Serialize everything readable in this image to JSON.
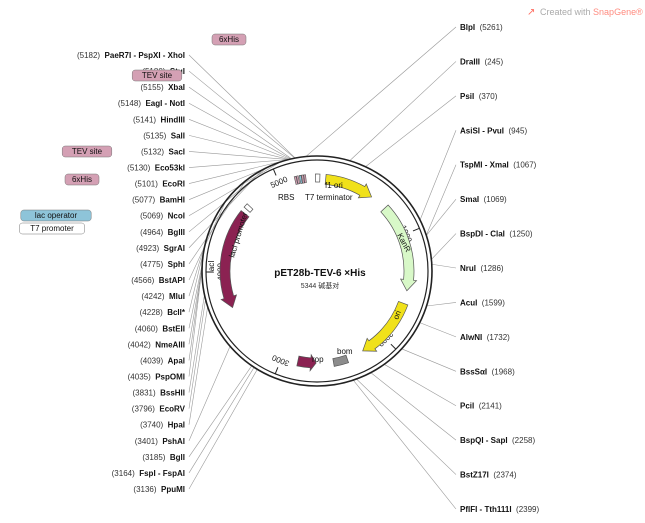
{
  "credit": {
    "prefix": "Created with",
    "brand": "SnapGene®",
    "brand_color": "#ff6e61"
  },
  "plasmid": {
    "name": "pET28b-TEV-6 ×His",
    "size": "5344",
    "size_suffix": "碱基对",
    "length_bp": 5344
  },
  "colors": {
    "backbone": "#222222",
    "f1_ori": "#f0e11a",
    "kanr": "#d8f8c8",
    "ori": "#f0e11a",
    "laci": "#8b2252",
    "rop": "#8b2252",
    "bom": "#8c8c8c",
    "tev_tag": "#d4a0b4",
    "his_tag": "#d4a0b4",
    "lac_operator": "#8ec4d9",
    "t7_promoter": "#ffffff",
    "rbs": "#ffffff"
  },
  "ticks": [
    {
      "bp": 1000,
      "label": "1000"
    },
    {
      "bp": 2000,
      "label": "2000"
    },
    {
      "bp": 3000,
      "label": "3000"
    },
    {
      "bp": 4000,
      "label": "4000"
    },
    {
      "bp": 5000,
      "label": "5000"
    }
  ],
  "features": [
    {
      "name": "f1 ori",
      "start": 80,
      "end": 540,
      "type": "arrow",
      "color": "#f0e11a",
      "label_inside": true
    },
    {
      "name": "KanR",
      "start": 700,
      "end": 1520,
      "type": "arrow",
      "color": "#d8f8c8",
      "label_inside": true
    },
    {
      "name": "ori",
      "start": 1640,
      "end": 2230,
      "type": "arrow",
      "color": "#f0e11a",
      "label_inside": true
    },
    {
      "name": "rop",
      "start": 2850,
      "end": 2680,
      "type": "arrow",
      "color": "#8b2252",
      "label_inside": false
    },
    {
      "name": "bom",
      "start": 2390,
      "end": 2520,
      "type": "box",
      "color": "#8c8c8c",
      "label_inside": false
    },
    {
      "name": "lacI",
      "start": 4580,
      "end": 3660,
      "type": "arrow",
      "color": "#8b2252",
      "label_inside": true
    },
    {
      "name": "lacI promoter",
      "start": 4660,
      "end": 4620,
      "type": "box",
      "color": "#ffffff",
      "label_inside": false
    },
    {
      "name": "RBS",
      "start": 5190,
      "end": 5210,
      "type": "box",
      "color": "#ffffff",
      "label_inside": false
    },
    {
      "name": "T7 terminator",
      "start": 5330,
      "end": 5370,
      "type": "box",
      "color": "#ffffff",
      "label_inside": false
    }
  ],
  "inner_labels": {
    "t7_terminator": "T7 terminator",
    "rbs": "RBS",
    "lacI_promoter": "lacI promoter",
    "bom": "bom",
    "rop": "rop"
  },
  "sites_right": [
    {
      "name": "BlpI",
      "pos": "(5261)",
      "bp": 5261
    },
    {
      "name": "DraIII",
      "pos": "(245)",
      "bp": 245
    },
    {
      "name": "PsiI",
      "pos": "(370)",
      "bp": 370
    },
    {
      "name": "AsiSI - PvuI",
      "pos": "(945)",
      "bp": 945
    },
    {
      "name": "TspMI - XmaI",
      "pos": "(1067)",
      "bp": 1067
    },
    {
      "name": "SmaI",
      "pos": "(1069)",
      "bp": 1069
    },
    {
      "name": "BspDI - ClaI",
      "pos": "(1250)",
      "bp": 1250
    },
    {
      "name": "NruI",
      "pos": "(1286)",
      "bp": 1286
    },
    {
      "name": "AcuI",
      "pos": "(1599)",
      "bp": 1599
    },
    {
      "name": "AlwNI",
      "pos": "(1732)",
      "bp": 1732
    },
    {
      "name": "BssSαI",
      "pos": "(1968)",
      "bp": 1968
    },
    {
      "name": "PciI",
      "pos": "(2141)",
      "bp": 2141
    },
    {
      "name": "BspQI - SapI",
      "pos": "(2258)",
      "bp": 2258
    },
    {
      "name": "BstZ17I",
      "pos": "(2374)",
      "bp": 2374
    },
    {
      "name": "PflFI - Tth111I",
      "pos": "(2399)",
      "bp": 2399
    }
  ],
  "sites_left": [
    {
      "name": "PaeR7I - PspXI - XhoI",
      "pos": "(5182)",
      "bp": 5182
    },
    {
      "name": "StuI",
      "pos": "(5180)",
      "bp": 5180
    },
    {
      "name": "XbaI",
      "pos": "(5155)",
      "bp": 5155
    },
    {
      "name": "EagI - NotI",
      "pos": "(5148)",
      "bp": 5148
    },
    {
      "name": "HindIII",
      "pos": "(5141)",
      "bp": 5141
    },
    {
      "name": "SalI",
      "pos": "(5135)",
      "bp": 5135
    },
    {
      "name": "SacI",
      "pos": "(5132)",
      "bp": 5132
    },
    {
      "name": "Eco53kI",
      "pos": "(5130)",
      "bp": 5130
    },
    {
      "name": "EcoRI",
      "pos": "(5101)",
      "bp": 5101
    },
    {
      "name": "BamHI",
      "pos": "(5077)",
      "bp": 5077
    },
    {
      "name": "NcoI",
      "pos": "(5069)",
      "bp": 5069
    },
    {
      "name": "BglII",
      "pos": "(4964)",
      "bp": 4964
    },
    {
      "name": "SgrAI",
      "pos": "(4923)",
      "bp": 4923
    },
    {
      "name": "SphI",
      "pos": "(4775)",
      "bp": 4775
    },
    {
      "name": "BstAPI",
      "pos": "(4566)",
      "bp": 4566
    },
    {
      "name": "MluI",
      "pos": "(4242)",
      "bp": 4242
    },
    {
      "name": "BclI*",
      "pos": "(4228)",
      "bp": 4228
    },
    {
      "name": "BstEII",
      "pos": "(4060)",
      "bp": 4060
    },
    {
      "name": "NmeAIII",
      "pos": "(4042)",
      "bp": 4042
    },
    {
      "name": "ApaI",
      "pos": "(4039)",
      "bp": 4039
    },
    {
      "name": "PspOMI",
      "pos": "(4035)",
      "bp": 4035
    },
    {
      "name": "BssHII",
      "pos": "(3831)",
      "bp": 3831
    },
    {
      "name": "EcoRV",
      "pos": "(3796)",
      "bp": 3796
    },
    {
      "name": "HpaI",
      "pos": "(3740)",
      "bp": 3740
    },
    {
      "name": "PshAI",
      "pos": "(3401)",
      "bp": 3401
    },
    {
      "name": "BglI",
      "pos": "(3185)",
      "bp": 3185
    },
    {
      "name": "FspI - FspAI",
      "pos": "(3164)",
      "bp": 3164
    },
    {
      "name": "PpuMI",
      "pos": "(3136)",
      "bp": 3136
    }
  ],
  "tag_labels": [
    {
      "name": "6xHis",
      "kind": "his"
    },
    {
      "name": "TEV site",
      "kind": "tev"
    },
    {
      "name": "TEV site",
      "kind": "tev"
    },
    {
      "name": "6xHis",
      "kind": "his"
    },
    {
      "name": "lac operator",
      "kind": "lac"
    },
    {
      "name": "T7 promoter",
      "kind": "t7"
    }
  ]
}
